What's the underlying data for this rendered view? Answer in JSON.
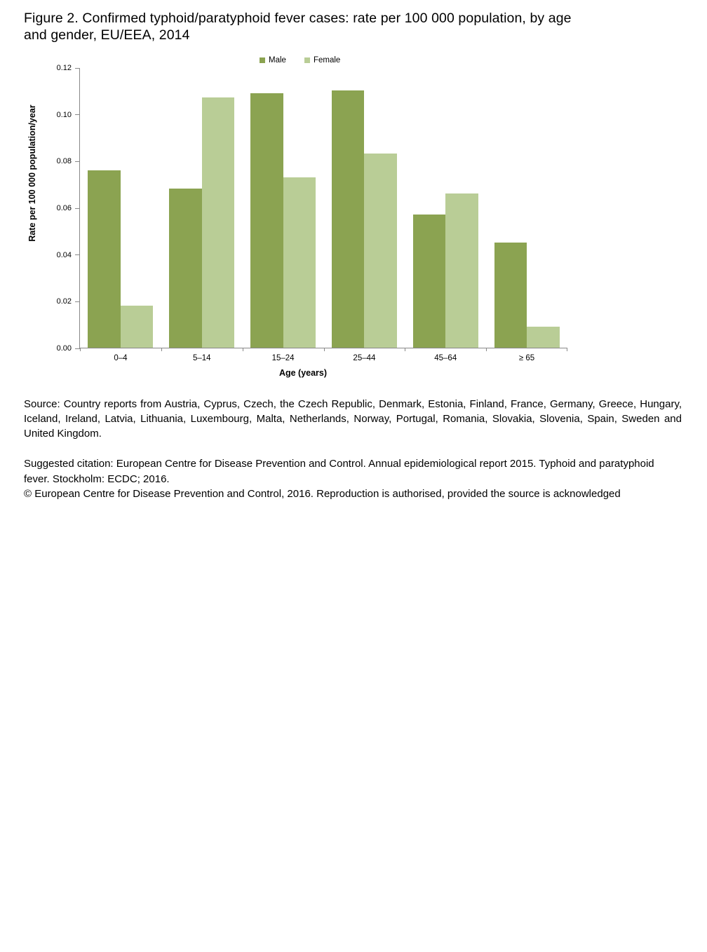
{
  "title": {
    "line1": "Figure 2. Confirmed typhoid/paratyphoid fever cases: rate per 100 000 population, by age",
    "line2": "and gender, EU/EEA, 2014"
  },
  "chart_data": {
    "type": "bar",
    "title": "Confirmed typhoid/paratyphoid fever cases: rate per 100 000 population, by age and gender, EU/EEA, 2014",
    "categories": [
      "0–4",
      "5–14",
      "15–24",
      "25–44",
      "45–64",
      "≥ 65"
    ],
    "series": [
      {
        "name": "Male",
        "color": "#8BA351",
        "values": [
          0.076,
          0.068,
          0.109,
          0.11,
          0.057,
          0.045
        ]
      },
      {
        "name": "Female",
        "color": "#B9CD96",
        "values": [
          0.018,
          0.107,
          0.073,
          0.083,
          0.066,
          0.009
        ]
      }
    ],
    "xlabel": "Age (years)",
    "ylabel": "Rate per 100 000 population/year",
    "ylim": [
      0,
      0.12
    ],
    "yticks": [
      "0.00",
      "0.02",
      "0.04",
      "0.06",
      "0.08",
      "0.10",
      "0.12"
    ],
    "grid": false,
    "legend_position": "top",
    "axis_color": "#888888"
  },
  "footer": {
    "source": "Source: Country reports from Austria, Cyprus, Czech, the Czech Republic, Denmark, Estonia, Finland, France, Germany, Greece, Hungary, Iceland, Ireland, Latvia, Lithuania, Luxembourg, Malta, Netherlands, Norway, Portugal, Romania, Slovakia, Slovenia, Spain, Sweden and United Kingdom.",
    "citation": "Suggested citation: European Centre for Disease Prevention and Control. Annual epidemiological report 2015. Typhoid and paratyphoid fever. Stockholm: ECDC; 2016.",
    "copyright": "© European Centre for Disease Prevention and Control, 2016. Reproduction is authorised, provided the source is acknowledged"
  }
}
